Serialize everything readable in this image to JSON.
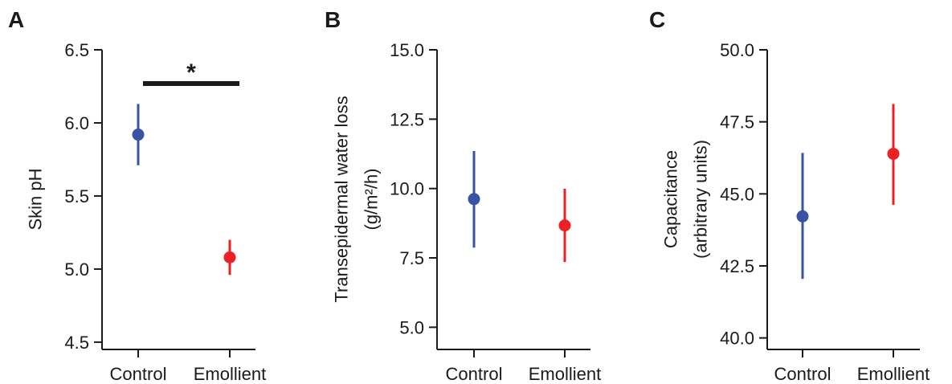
{
  "colors": {
    "control": "#3953a4",
    "emollient": "#ed2124",
    "axis": "#1a1a1a"
  },
  "chart_data": [
    {
      "type": "scatter",
      "panel": "A",
      "categories": [
        "Control",
        "Emollient"
      ],
      "ylabel": [
        "Skin pH"
      ],
      "ylim": [
        4.45,
        6.5
      ],
      "yticks": [
        "4.5",
        "5.0",
        "5.5",
        "6.0",
        "6.5"
      ],
      "series": [
        {
          "category": "Control",
          "mean": 5.92,
          "lower": 5.71,
          "upper": 6.13
        },
        {
          "category": "Emollient",
          "mean": 5.08,
          "lower": 4.96,
          "upper": 5.2
        }
      ],
      "significance": {
        "label": "*",
        "from": "Control",
        "to": "Emollient"
      }
    },
    {
      "type": "scatter",
      "panel": "B",
      "categories": [
        "Control",
        "Emollient"
      ],
      "ylabel": [
        "Transepidermal water loss",
        "(g/m²/h)"
      ],
      "ylim": [
        4.2,
        15.0
      ],
      "yticks": [
        "5.0",
        "7.5",
        "10.0",
        "12.5",
        "15.0"
      ],
      "series": [
        {
          "category": "Control",
          "mean": 9.62,
          "lower": 7.87,
          "upper": 11.35
        },
        {
          "category": "Emollient",
          "mean": 8.67,
          "lower": 7.35,
          "upper": 9.99
        }
      ]
    },
    {
      "type": "scatter",
      "panel": "C",
      "categories": [
        "Control",
        "Emollient"
      ],
      "ylabel": [
        "Capacitance",
        "(arbitrary units)"
      ],
      "ylim": [
        39.6,
        50.0
      ],
      "yticks": [
        "40.0",
        "42.5",
        "45.0",
        "47.5",
        "50.0"
      ],
      "series": [
        {
          "category": "Control",
          "mean": 44.22,
          "lower": 42.05,
          "upper": 46.42
        },
        {
          "category": "Emollient",
          "mean": 46.39,
          "lower": 44.62,
          "upper": 48.12
        }
      ]
    }
  ]
}
